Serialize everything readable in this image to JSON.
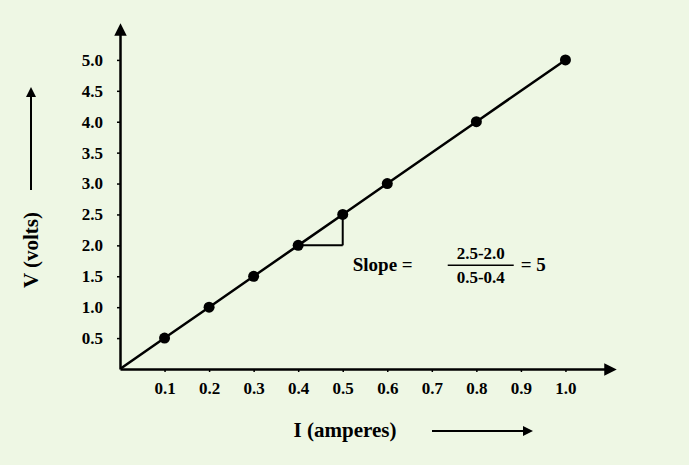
{
  "chart_data": {
    "type": "line",
    "x_label": "I (amperes)",
    "y_label": "V (volts)",
    "x": [
      0,
      0.1,
      0.2,
      0.3,
      0.4,
      0.5,
      0.6,
      0.8,
      1.0
    ],
    "series": [
      {
        "type": "line",
        "color": "#000000",
        "marker": "none",
        "line_style": "solid",
        "values": [
          0,
          0.5,
          1.0,
          1.5,
          2.0,
          2.5,
          3.0,
          4.0,
          5.0
        ]
      },
      {
        "type": "scatter",
        "color": "#000000",
        "marker": "circle",
        "values": [
          null,
          0.5,
          1.0,
          1.5,
          2.0,
          2.5,
          3.0,
          4.0,
          5.0
        ]
      }
    ],
    "xlim": [
      0,
      1.1
    ],
    "ylim": [
      0,
      5.5
    ],
    "xticks": [
      0.1,
      0.2,
      0.3,
      0.4,
      0.5,
      0.6,
      0.7,
      0.8,
      0.9,
      {
        "value": 1,
        "label": "1.0"
      }
    ],
    "yticks": [
      0.5,
      {
        "value": 1,
        "label": "1.0"
      },
      1.5,
      {
        "value": 2,
        "label": "2.0"
      },
      2.5,
      {
        "value": 3,
        "label": "3.0"
      },
      3.5,
      {
        "value": 4,
        "label": "4.0"
      },
      4.5,
      {
        "value": 5,
        "label": "5.0"
      }
    ],
    "grid": false,
    "annotation": {
      "prefix": "Slope =",
      "numerator": "2.5-2.0",
      "denominator": "0.5-0.4",
      "result": "= 5",
      "x": [
        0.4,
        0.5
      ],
      "y": [
        2.0,
        2.5
      ]
    }
  }
}
